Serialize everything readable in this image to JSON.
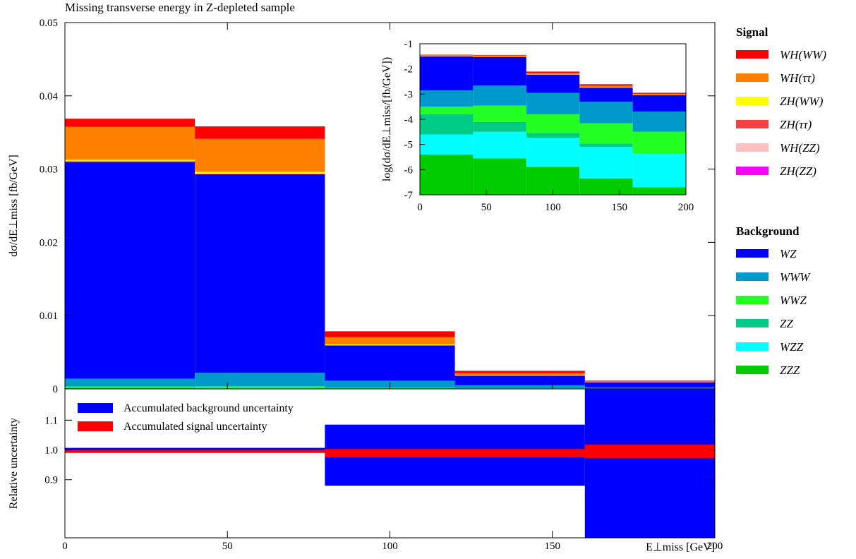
{
  "chart_data": [
    {
      "type": "stacked-histogram",
      "title": "Missing transverse energy in Z-depleted sample",
      "ylabel": "dσ/dE⊥miss [fb/GeV]",
      "bins": [
        0,
        40,
        80,
        120,
        160,
        200
      ],
      "xlim": [
        0,
        200
      ],
      "xticks": [
        0,
        50,
        100,
        150,
        200
      ],
      "ylim": [
        0,
        0.05
      ],
      "yticks": [
        0,
        0.01,
        0.02,
        0.03,
        0.04,
        0.05
      ],
      "series_groups": [
        {
          "name": "Signal",
          "series": [
            {
              "name": "WH(WW)",
              "color": "#ff0000",
              "values": [
                0.0011,
                0.0017,
                0.0008,
                0.0003,
                0.0001
              ]
            },
            {
              "name": "WH(ττ)",
              "color": "#ff8000",
              "values": [
                0.0045,
                0.0045,
                0.001,
                0.0003,
                0.0001
              ]
            },
            {
              "name": "ZH(WW)",
              "color": "#ffff00",
              "values": [
                0.0002,
                0.00025,
                0.0001,
                5e-05,
                2e-05
              ]
            },
            {
              "name": "ZH(ττ)",
              "color": "#f44040",
              "values": [
                5e-05,
                5e-05,
                3e-05,
                1e-05,
                5e-06
              ]
            },
            {
              "name": "WH(ZZ)",
              "color": "#ffc0c0",
              "values": [
                2e-05,
                2e-05,
                1e-05,
                5e-06,
                2e-06
              ]
            },
            {
              "name": "ZH(ZZ)",
              "color": "#ff00ff",
              "values": [
                1e-05,
                1e-05,
                5e-06,
                2e-06,
                1e-06
              ]
            }
          ]
        },
        {
          "name": "Background",
          "series": [
            {
              "name": "WZ",
              "color": "#0000ff",
              "values": [
                0.0296,
                0.0271,
                0.0048,
                0.0013,
                0.0007
              ]
            },
            {
              "name": "WWW",
              "color": "#0099cc",
              "values": [
                0.00108,
                0.00185,
                0.00096,
                0.00043,
                0.00017
              ]
            },
            {
              "name": "WWZ",
              "color": "#22ff22",
              "values": [
                0.00016,
                0.00027,
                0.00013,
                5.9e-05,
                2.8e-05
              ]
            },
            {
              "name": "ZZ",
              "color": "#00cc88",
              "values": [
                0.000135,
                4.7e-05,
                1e-05,
                3e-06,
                1e-07
              ]
            },
            {
              "name": "WZZ",
              "color": "#00ffff",
              "values": [
                2.1e-05,
                2.9e-05,
                1.7e-05,
                7.5e-06,
                4e-06
              ]
            },
            {
              "name": "ZZZ",
              "color": "#00cc00",
              "values": [
                4e-06,
                2.8e-06,
                1.3e-06,
                4.5e-07,
                2e-07
              ]
            }
          ]
        }
      ],
      "inset": {
        "ylabel": "log(dσ/dE⊥miss/[fb/GeV])",
        "xlim": [
          0,
          200
        ],
        "xticks": [
          0,
          50,
          100,
          150,
          200
        ],
        "ylim": [
          -7,
          -1
        ],
        "yticks": [
          -7,
          -6,
          -5,
          -4,
          -3,
          -2,
          -1
        ]
      }
    },
    {
      "type": "band",
      "ylabel": "Relative uncertainty",
      "xlabel": "E⊥miss [GeV]",
      "bins": [
        0,
        80,
        160,
        200
      ],
      "xlim": [
        0,
        200
      ],
      "xticks": [
        0,
        50,
        100,
        150,
        200
      ],
      "ylim": [
        0.705,
        1.205
      ],
      "yticks": [
        0.9,
        {
          "value": 1.0,
          "label": "1.0"
        },
        1.1
      ],
      "legend": "upper left",
      "series": [
        {
          "name": "Accumulated background uncertainty",
          "color": "#0000ff",
          "low": [
            0.993,
            0.88,
            0.7
          ],
          "high": [
            1.007,
            1.085,
            1.21
          ]
        },
        {
          "name": "Accumulated signal uncertainty",
          "color": "#ff0000",
          "low": [
            0.99,
            0.975,
            0.973
          ],
          "high": [
            1.0,
            1.003,
            1.018
          ]
        }
      ]
    }
  ]
}
